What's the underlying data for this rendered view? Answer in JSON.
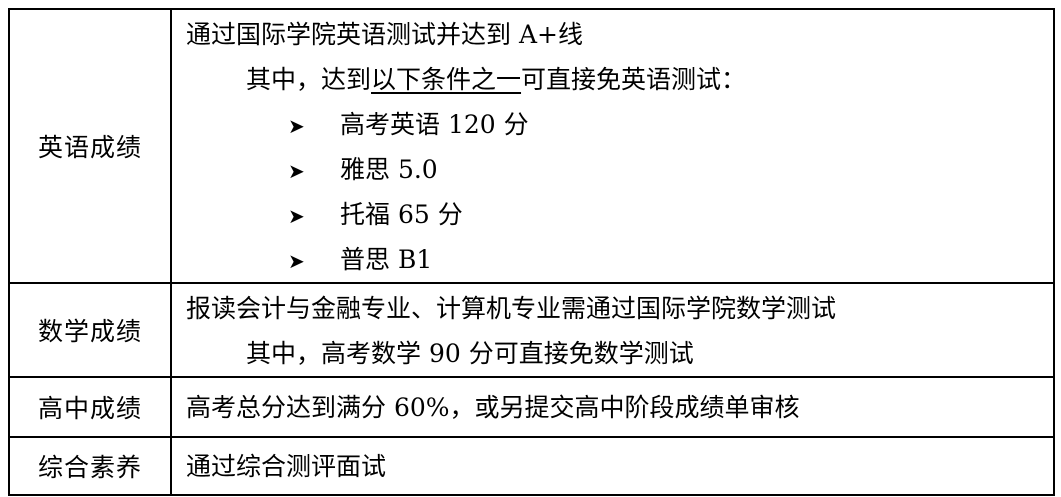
{
  "rows": [
    {
      "label": "英语成绩",
      "lines": [
        "通过国际学院英语测试并达到 A+线"
      ],
      "sub_prefix": "其中，达到",
      "sub_underlined": "以下条件之一",
      "sub_suffix": "可直接免英语测试：",
      "bullets": [
        "高考英语 120 分",
        "雅思 5.0",
        "托福 65 分",
        "普思 B1"
      ],
      "bullet_icon": "arrowhead-right"
    },
    {
      "label": "数学成绩",
      "lines": [
        "报读会计与金融专业、计算机专业需通过国际学院数学测试",
        "其中，高考数学 90 分可直接免数学测试"
      ]
    },
    {
      "label": "高中成绩",
      "lines": [
        "高考总分达到满分 60%，或另提交高中阶段成绩单审核"
      ]
    },
    {
      "label": "综合素养",
      "lines": [
        "通过综合测评面试"
      ]
    }
  ]
}
